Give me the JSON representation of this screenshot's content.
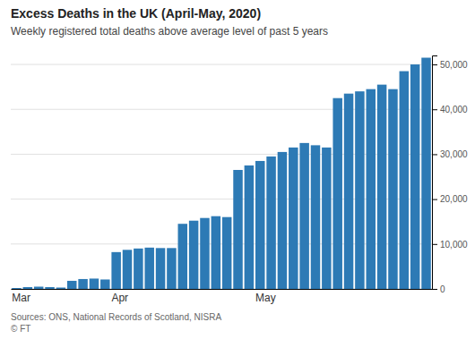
{
  "chart_data": {
    "type": "bar",
    "title": "Excess Deaths in the UK (April-May, 2020)",
    "subtitle": "Weekly registered total deaths above average level of past 5 years",
    "source": "Sources: ONS, National Records of Scotland, NISRA\n© FT",
    "categories": [
      "Mar",
      null,
      null,
      null,
      null,
      null,
      null,
      null,
      null,
      "Apr",
      null,
      null,
      null,
      null,
      null,
      null,
      null,
      null,
      null,
      null,
      null,
      null,
      "May",
      null,
      null,
      null,
      null,
      null,
      null,
      null,
      null,
      null,
      null,
      null,
      null,
      null,
      null,
      null
    ],
    "values": [
      200,
      400,
      500,
      400,
      300,
      1800,
      2200,
      2300,
      2100,
      8200,
      8700,
      9000,
      9200,
      9100,
      9100,
      14500,
      15200,
      15800,
      16200,
      16000,
      26500,
      27500,
      28500,
      29500,
      30500,
      31500,
      32500,
      32000,
      31500,
      42500,
      43500,
      44000,
      44500,
      45500,
      44500,
      48500,
      50000,
      51500
    ],
    "color": "#2d7ab5",
    "ylim": [
      0,
      52000
    ],
    "yticks": [
      0,
      {
        "value": 10000,
        "label": "10,000"
      },
      {
        "value": 20000,
        "label": "20,000"
      },
      {
        "value": 30000,
        "label": "30,000"
      },
      {
        "value": 40000,
        "label": "40,000"
      },
      {
        "value": 50000,
        "label": "50,000"
      }
    ],
    "grid": true
  }
}
